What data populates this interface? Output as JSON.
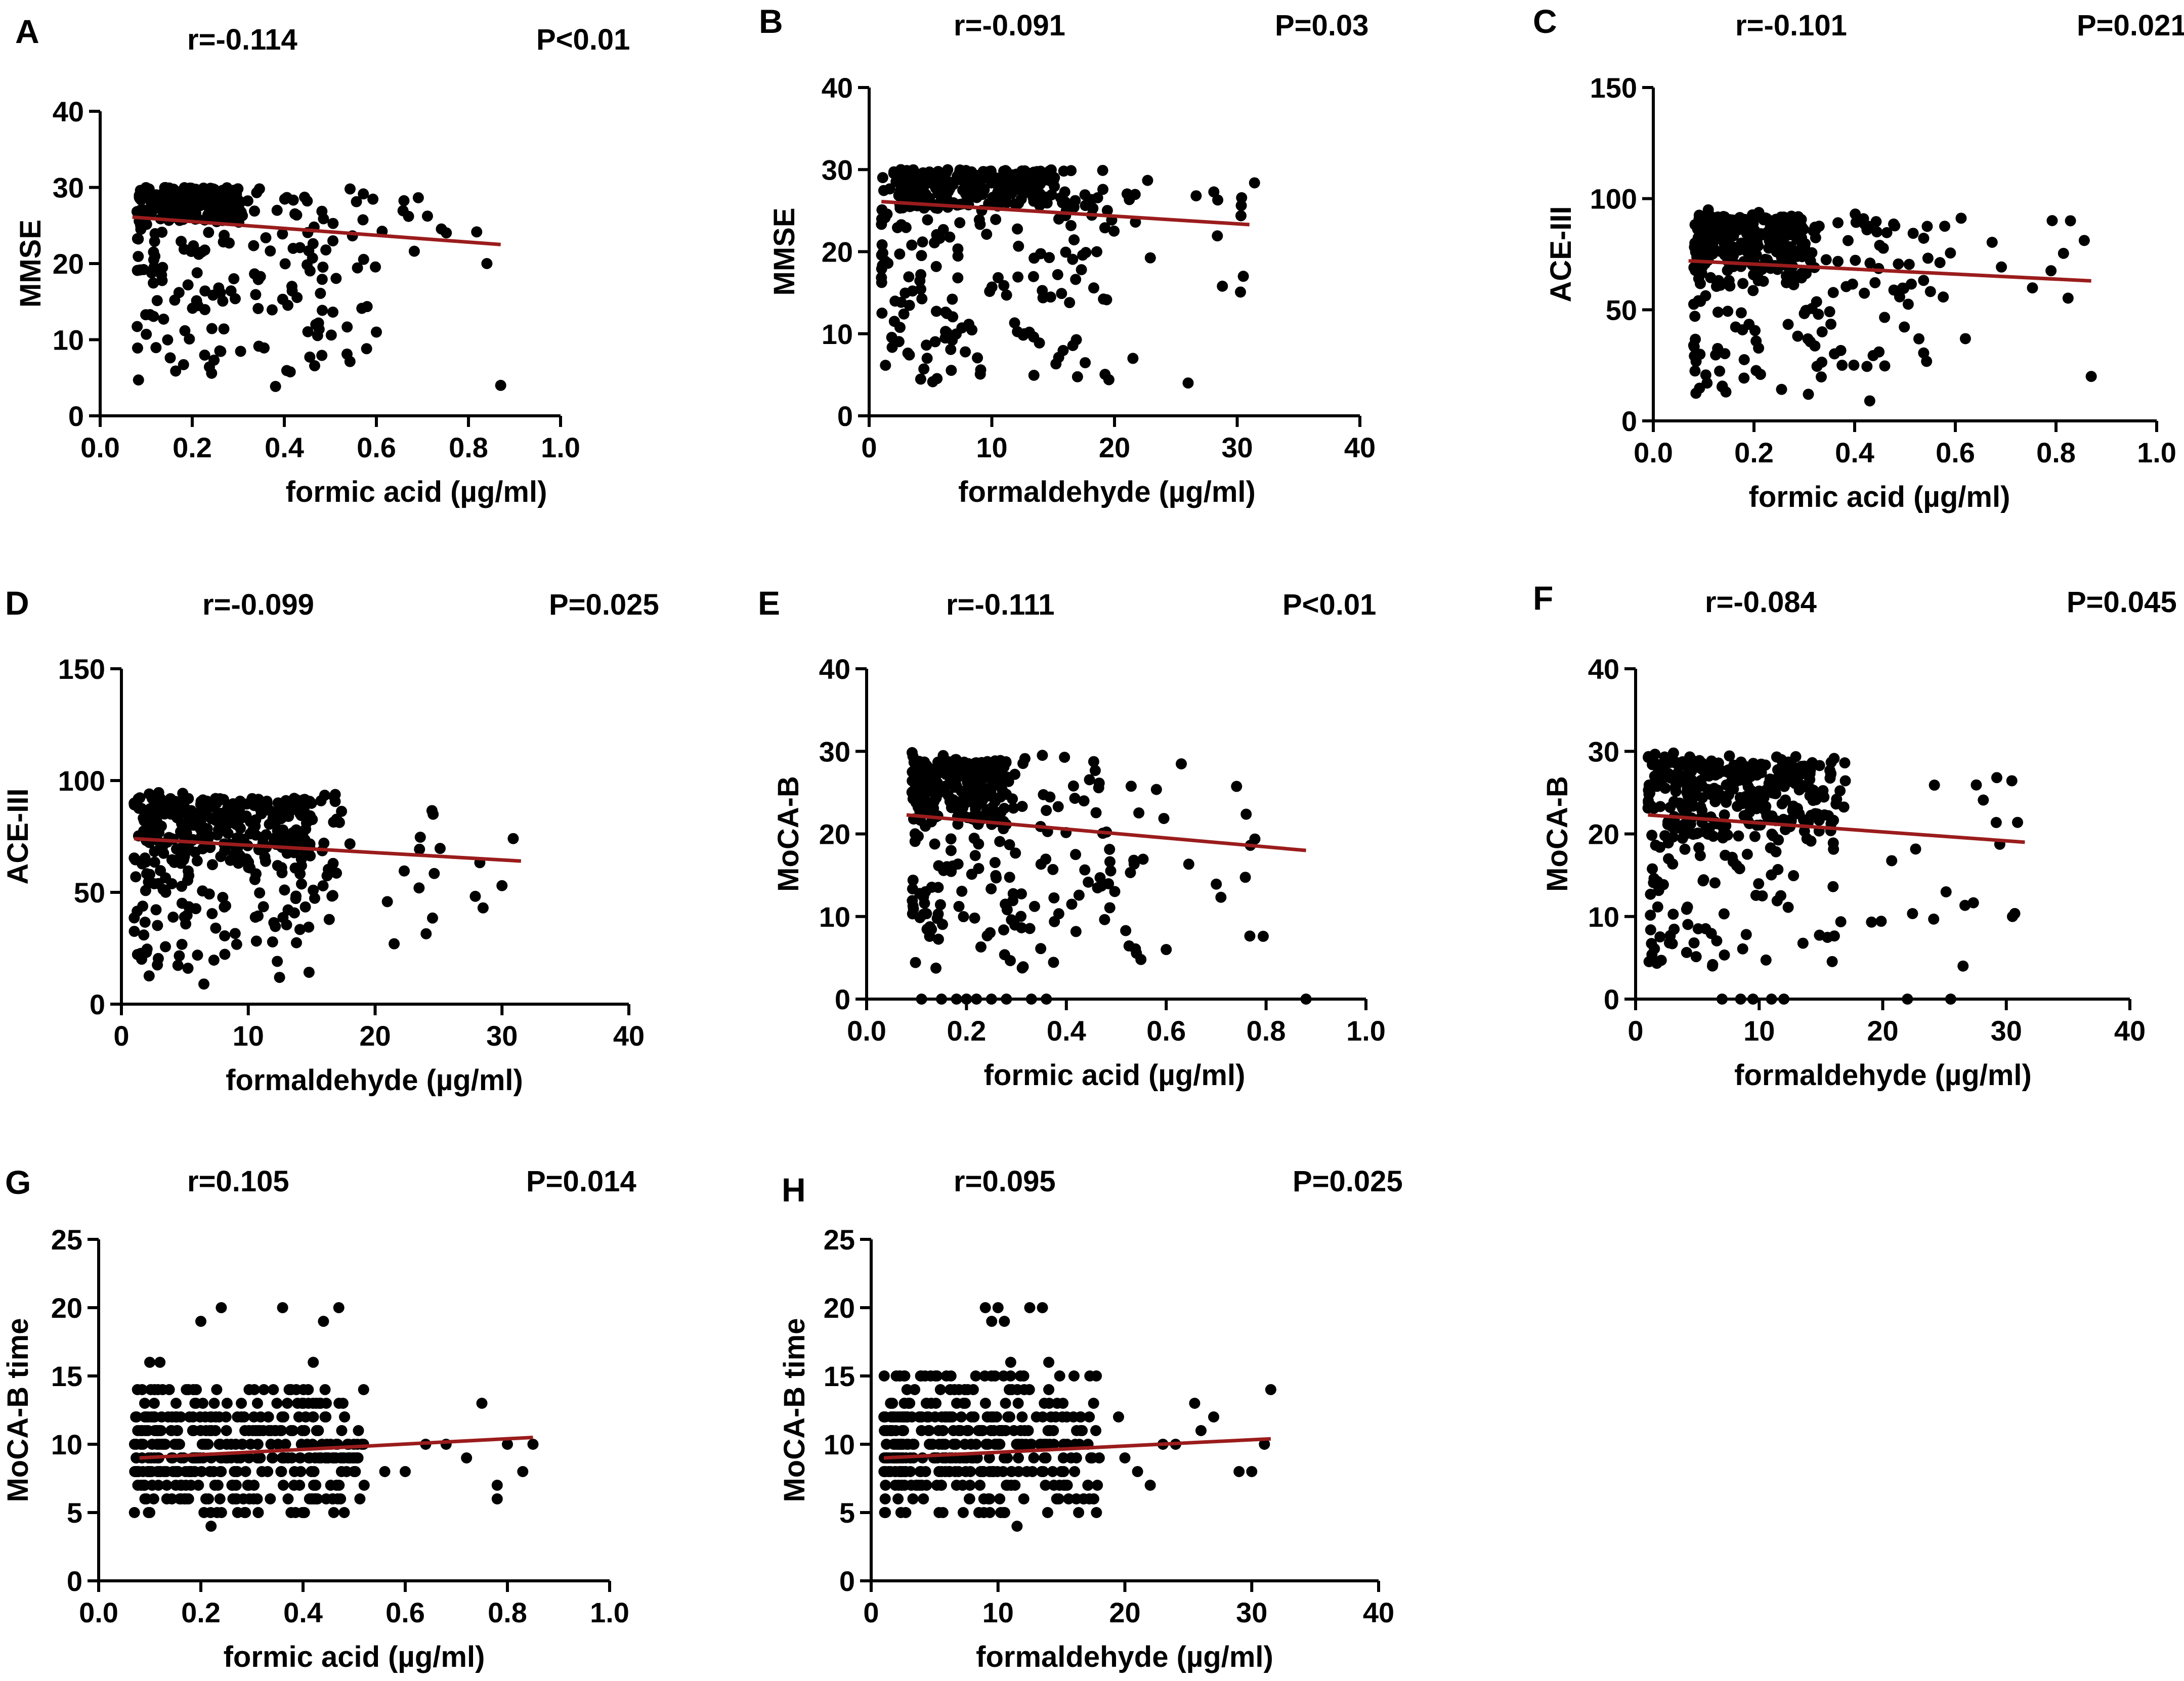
{
  "colors": {
    "point": "#000000",
    "axis": "#000000",
    "fit_line": "#9b1c1c"
  },
  "chart_data": [
    {
      "panel": "A",
      "type": "scatter",
      "stat_r": "r=-0.114",
      "stat_p": "P<0.01",
      "xlabel": "formic acid (µg/ml)",
      "ylabel": "MMSE",
      "xlim": [
        0,
        1.0
      ],
      "ylim": [
        0,
        40
      ],
      "xticks": [
        0,
        0.2,
        0.4,
        0.6,
        0.8,
        1.0
      ],
      "xtick_labels": [
        "0.0",
        "0.2",
        "0.4",
        "0.6",
        "0.8",
        "1.0"
      ],
      "yticks": [
        0,
        10,
        20,
        30,
        40
      ],
      "ytick_labels": [
        "0",
        "10",
        "20",
        "30",
        "40"
      ],
      "fit": {
        "x": [
          0.07,
          0.87
        ],
        "y": [
          26.1,
          22.5
        ]
      },
      "dense": {
        "x": [
          0.08,
          0.3
        ],
        "y": [
          25,
          30
        ]
      },
      "cloud": {
        "x": [
          0.08,
          0.58
        ],
        "y": [
          3,
          30
        ],
        "spread": 0.5
      },
      "tail": {
        "x": [
          0.4,
          0.88
        ],
        "y": [
          18,
          30
        ],
        "n": 18
      },
      "n": 380,
      "seed": 11,
      "extra_points": [
        [
          0.87,
          4
        ],
        [
          0.6,
          11
        ],
        [
          0.84,
          20
        ]
      ]
    },
    {
      "panel": "B",
      "type": "scatter",
      "stat_r": "r=-0.091",
      "stat_p": "P=0.03",
      "xlabel": "formaldehyde (µg/ml)",
      "ylabel": "MMSE",
      "xlim": [
        0,
        40
      ],
      "ylim": [
        0,
        40
      ],
      "xticks": [
        0,
        10,
        20,
        30,
        40
      ],
      "xtick_labels": [
        "0",
        "10",
        "20",
        "30",
        "40"
      ],
      "yticks": [
        0,
        10,
        20,
        30,
        40
      ],
      "ytick_labels": [
        "0",
        "10",
        "20",
        "30",
        "40"
      ],
      "fit": {
        "x": [
          1,
          31
        ],
        "y": [
          26.1,
          23.3
        ]
      },
      "dense": {
        "x": [
          2,
          16
        ],
        "y": [
          25,
          30
        ]
      },
      "cloud": {
        "x": [
          1,
          20
        ],
        "y": [
          4,
          30
        ],
        "spread": 0.5
      },
      "tail": {
        "x": [
          18,
          32
        ],
        "y": [
          15,
          30
        ],
        "n": 18
      },
      "n": 400,
      "seed": 23,
      "extra_points": [
        [
          21.5,
          7
        ],
        [
          26,
          4
        ],
        [
          30.5,
          17
        ]
      ]
    },
    {
      "panel": "C",
      "type": "scatter",
      "stat_r": "r=-0.101",
      "stat_p": "P=0.021",
      "xlabel": "formic acid (µg/ml)",
      "ylabel": "ACE-III",
      "xlim": [
        0,
        1.0
      ],
      "ylim": [
        0,
        150
      ],
      "xticks": [
        0,
        0.2,
        0.4,
        0.6,
        0.8,
        1.0
      ],
      "xtick_labels": [
        "0.0",
        "0.2",
        "0.4",
        "0.6",
        "0.8",
        "1.0"
      ],
      "yticks": [
        0,
        50,
        100,
        150
      ],
      "ytick_labels": [
        "0",
        "50",
        "100",
        "150"
      ],
      "fit": {
        "x": [
          0.07,
          0.87
        ],
        "y": [
          72,
          63
        ]
      },
      "dense": {
        "x": [
          0.08,
          0.3
        ],
        "y": [
          60,
          92
        ]
      },
      "cloud": {
        "x": [
          0.08,
          0.55
        ],
        "y": [
          10,
          95
        ],
        "spread": 0.5
      },
      "tail": {
        "x": [
          0.4,
          0.86
        ],
        "y": [
          55,
          95
        ],
        "n": 20
      },
      "n": 380,
      "seed": 37,
      "extra_points": [
        [
          0.87,
          20
        ],
        [
          0.43,
          9
        ],
        [
          0.62,
          37
        ]
      ]
    },
    {
      "panel": "D",
      "type": "scatter",
      "stat_r": "r=-0.099",
      "stat_p": "P=0.025",
      "xlabel": "formaldehyde (µg/ml)",
      "ylabel": "ACE-III",
      "xlim": [
        0,
        40
      ],
      "ylim": [
        0,
        150
      ],
      "xticks": [
        0,
        10,
        20,
        30,
        40
      ],
      "xtick_labels": [
        "0",
        "10",
        "20",
        "30",
        "40"
      ],
      "yticks": [
        0,
        50,
        100,
        150
      ],
      "ytick_labels": [
        "0",
        "50",
        "100",
        "150"
      ],
      "fit": {
        "x": [
          1,
          31.5
        ],
        "y": [
          74,
          64
        ]
      },
      "dense": {
        "x": [
          2,
          15
        ],
        "y": [
          60,
          92
        ]
      },
      "cloud": {
        "x": [
          1,
          17
        ],
        "y": [
          10,
          96
        ],
        "spread": 0.5
      },
      "tail": {
        "x": [
          17,
          31
        ],
        "y": [
          30,
          90
        ],
        "n": 18
      },
      "n": 400,
      "seed": 41,
      "extra_points": [
        [
          6.5,
          9
        ],
        [
          21.5,
          27
        ],
        [
          30,
          53
        ]
      ]
    },
    {
      "panel": "E",
      "type": "scatter",
      "stat_r": "r=-0.111",
      "stat_p": "P<0.01",
      "xlabel": "formic acid (µg/ml)",
      "ylabel": "MoCA-B",
      "xlim": [
        0,
        1.0
      ],
      "ylim": [
        0,
        40
      ],
      "xticks": [
        0,
        0.2,
        0.4,
        0.6,
        0.8,
        1.0
      ],
      "xtick_labels": [
        "0.0",
        "0.2",
        "0.4",
        "0.6",
        "0.8",
        "1.0"
      ],
      "yticks": [
        0,
        10,
        20,
        30,
        40
      ],
      "ytick_labels": [
        "0",
        "10",
        "20",
        "30",
        "40"
      ],
      "fit": {
        "x": [
          0.08,
          0.88
        ],
        "y": [
          22.3,
          18
        ]
      },
      "dense": {
        "x": [
          0.09,
          0.28
        ],
        "y": [
          20,
          29
        ]
      },
      "cloud": {
        "x": [
          0.09,
          0.55
        ],
        "y": [
          3,
          30
        ],
        "spread": 0.5
      },
      "tail": {
        "x": [
          0.4,
          0.85
        ],
        "y": [
          6,
          29
        ],
        "n": 22
      },
      "n": 380,
      "seed": 53,
      "extra_points": [
        [
          0.11,
          0
        ],
        [
          0.15,
          0
        ],
        [
          0.18,
          0
        ],
        [
          0.2,
          0
        ],
        [
          0.22,
          0
        ],
        [
          0.25,
          0
        ],
        [
          0.28,
          0
        ],
        [
          0.33,
          0
        ],
        [
          0.36,
          0
        ],
        [
          0.88,
          0
        ],
        [
          0.6,
          6
        ]
      ]
    },
    {
      "panel": "F",
      "type": "scatter",
      "stat_r": "r=-0.084",
      "stat_p": "P=0.045",
      "xlabel": "formaldehyde (µg/ml)",
      "ylabel": "MoCA-B",
      "xlim": [
        0,
        40
      ],
      "ylim": [
        0,
        40
      ],
      "xticks": [
        0,
        10,
        20,
        30,
        40
      ],
      "xtick_labels": [
        "0",
        "10",
        "20",
        "30",
        "40"
      ],
      "yticks": [
        0,
        10,
        20,
        30,
        40
      ],
      "ytick_labels": [
        "0",
        "10",
        "20",
        "30",
        "40"
      ],
      "fit": {
        "x": [
          1,
          31.5
        ],
        "y": [
          22.3,
          19
        ]
      },
      "dense": {
        "x": [
          2,
          15
        ],
        "y": [
          19,
          29
        ]
      },
      "cloud": {
        "x": [
          1,
          17
        ],
        "y": [
          3,
          30
        ],
        "spread": 0.5
      },
      "tail": {
        "x": [
          17,
          31
        ],
        "y": [
          9,
          27
        ],
        "n": 18
      },
      "n": 400,
      "seed": 67,
      "extra_points": [
        [
          7,
          0
        ],
        [
          8.5,
          0
        ],
        [
          9.5,
          0
        ],
        [
          11,
          0
        ],
        [
          12,
          0
        ],
        [
          22,
          0
        ],
        [
          25.5,
          0
        ],
        [
          26.5,
          4
        ],
        [
          30.5,
          10
        ]
      ]
    },
    {
      "panel": "G",
      "type": "scatter",
      "stat_r": "r=0.105",
      "stat_p": "P=0.014",
      "xlabel": "formic acid (µg/ml)",
      "ylabel": "MoCA-B time",
      "xlim": [
        0,
        1.0
      ],
      "ylim": [
        0,
        25
      ],
      "xticks": [
        0,
        0.2,
        0.4,
        0.6,
        0.8,
        1.0
      ],
      "xtick_labels": [
        "0.0",
        "0.2",
        "0.4",
        "0.6",
        "0.8",
        "1.0"
      ],
      "yticks": [
        0,
        5,
        10,
        15,
        20,
        25
      ],
      "ytick_labels": [
        "0",
        "5",
        "10",
        "15",
        "20",
        "25"
      ],
      "fit": {
        "x": [
          0.08,
          0.85
        ],
        "y": [
          9,
          10.5
        ]
      },
      "grid_mode": {
        "x": [
          0.07,
          0.52
        ],
        "y": [
          5,
          14
        ],
        "n": 380
      },
      "n": 0,
      "seed": 79,
      "extra_points": [
        [
          0.2,
          19
        ],
        [
          0.24,
          20
        ],
        [
          0.36,
          20
        ],
        [
          0.44,
          19
        ],
        [
          0.47,
          20
        ],
        [
          0.1,
          16
        ],
        [
          0.12,
          16
        ],
        [
          0.42,
          16
        ],
        [
          0.22,
          4
        ],
        [
          0.07,
          5
        ],
        [
          0.1,
          5
        ],
        [
          0.6,
          8
        ],
        [
          0.64,
          10
        ],
        [
          0.68,
          10
        ],
        [
          0.72,
          9
        ],
        [
          0.75,
          13
        ],
        [
          0.78,
          6
        ],
        [
          0.78,
          7
        ],
        [
          0.8,
          10
        ],
        [
          0.83,
          8
        ],
        [
          0.85,
          10
        ],
        [
          0.56,
          8
        ]
      ]
    },
    {
      "panel": "H",
      "type": "scatter",
      "stat_r": "r=0.095",
      "stat_p": "P=0.025",
      "xlabel": "formaldehyde (µg/ml)",
      "ylabel": "MoCA-B time",
      "xlim": [
        0,
        40
      ],
      "ylim": [
        0,
        25
      ],
      "xticks": [
        0,
        10,
        20,
        30,
        40
      ],
      "xtick_labels": [
        "0",
        "10",
        "20",
        "30",
        "40"
      ],
      "yticks": [
        0,
        5,
        10,
        15,
        20,
        25
      ],
      "ytick_labels": [
        "0",
        "5",
        "10",
        "15",
        "20",
        "25"
      ],
      "fit": {
        "x": [
          1,
          31.5
        ],
        "y": [
          9,
          10.4
        ]
      },
      "grid_mode": {
        "x": [
          1,
          18
        ],
        "y": [
          5,
          15
        ],
        "n": 380
      },
      "n": 0,
      "seed": 91,
      "extra_points": [
        [
          9,
          20
        ],
        [
          9.5,
          19
        ],
        [
          10,
          20
        ],
        [
          10.5,
          19
        ],
        [
          12.5,
          20
        ],
        [
          13.5,
          20
        ],
        [
          11,
          16
        ],
        [
          14,
          16
        ],
        [
          11.5,
          4
        ],
        [
          20,
          9
        ],
        [
          21,
          8
        ],
        [
          22,
          7
        ],
        [
          24,
          10
        ],
        [
          25.5,
          13
        ],
        [
          26,
          11
        ],
        [
          27,
          12
        ],
        [
          29,
          8
        ],
        [
          30,
          8
        ],
        [
          31,
          10
        ],
        [
          31.5,
          14
        ],
        [
          19.5,
          12
        ],
        [
          23,
          10
        ]
      ]
    }
  ]
}
